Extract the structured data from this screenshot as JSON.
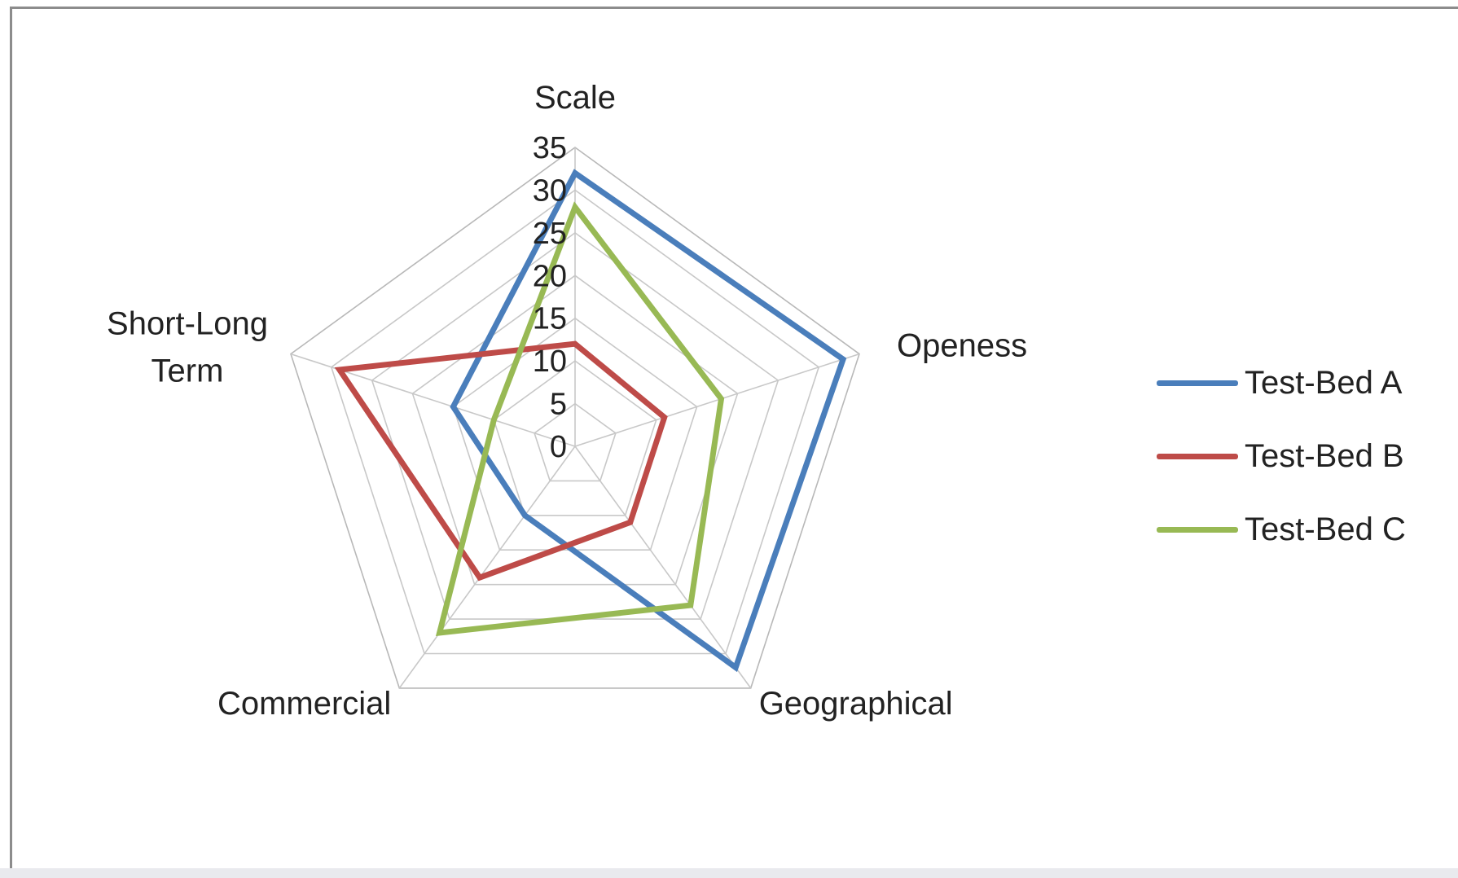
{
  "chart_data": {
    "type": "radar",
    "axes": [
      "Scale",
      "Openess",
      "Geographical",
      "Commercial",
      "Short-Long Term"
    ],
    "axis_label_lines": [
      [
        "Scale"
      ],
      [
        "Openess"
      ],
      [
        "Geographical"
      ],
      [
        "Commercial"
      ],
      [
        "Short-Long",
        "Term"
      ]
    ],
    "rlim": [
      0,
      35
    ],
    "ticks": [
      0,
      5,
      10,
      15,
      20,
      25,
      30,
      35
    ],
    "grid": true,
    "legend_position": "right",
    "series": [
      {
        "name": "Test-Bed A",
        "color": "#4a7ebb",
        "values": [
          32,
          33,
          32,
          10,
          15
        ]
      },
      {
        "name": "Test-Bed B",
        "color": "#be4b48",
        "values": [
          12,
          11,
          11,
          19,
          29
        ]
      },
      {
        "name": "Test-Bed C",
        "color": "#98b954",
        "values": [
          28,
          18,
          23,
          27,
          10
        ]
      }
    ]
  }
}
